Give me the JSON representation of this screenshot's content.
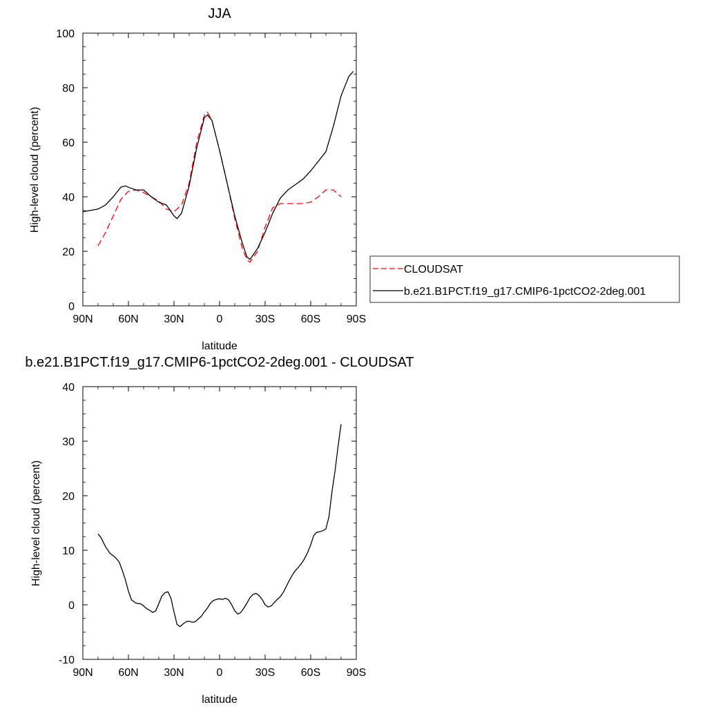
{
  "chart_data": [
    {
      "type": "line",
      "title": "JJA",
      "xlabel": "latitude",
      "ylabel": "High-level cloud (percent)",
      "xlim": [
        -90,
        90
      ],
      "ylim": [
        0,
        100
      ],
      "xticks": [
        {
          "value": -90,
          "label": "90N"
        },
        {
          "value": -60,
          "label": "60N"
        },
        {
          "value": -30,
          "label": "30N"
        },
        {
          "value": 0,
          "label": "0"
        },
        {
          "value": 30,
          "label": "30S"
        },
        {
          "value": 60,
          "label": "60S"
        },
        {
          "value": 90,
          "label": "90S"
        }
      ],
      "yticks": [
        0,
        20,
        40,
        60,
        80,
        100
      ],
      "legend_position": "right",
      "series": [
        {
          "name": "CLOUDSAT",
          "color": "#ff0000",
          "style": "dashed",
          "x": [
            -80,
            -75,
            -70,
            -65,
            -60,
            -55,
            -50,
            -45,
            -40,
            -35,
            -30,
            -25,
            -20,
            -15,
            -10,
            -8,
            -5,
            0,
            5,
            10,
            15,
            18,
            20,
            25,
            30,
            35,
            40,
            45,
            50,
            55,
            60,
            65,
            70,
            75,
            80
          ],
          "y": [
            22,
            27,
            33,
            39,
            42,
            42.5,
            41.5,
            40,
            38.5,
            35.5,
            34.5,
            37,
            45,
            60,
            70,
            71,
            68,
            57,
            45,
            32,
            21,
            17,
            16,
            20,
            29,
            36,
            37.5,
            37.5,
            37.5,
            37.5,
            38,
            40,
            42.5,
            42.5,
            40
          ]
        },
        {
          "name": "b.e21.B1PCT.f19_g17.CMIP6-1pctCO2-2deg.001",
          "color": "#000000",
          "style": "solid",
          "x": [
            -90,
            -85,
            -80,
            -75,
            -70,
            -65,
            -62,
            -60,
            -55,
            -50,
            -45,
            -40,
            -35,
            -30,
            -28,
            -25,
            -20,
            -15,
            -10,
            -8,
            -5,
            0,
            5,
            10,
            15,
            18,
            20,
            25,
            30,
            35,
            40,
            45,
            50,
            55,
            60,
            65,
            70,
            75,
            80,
            85,
            88
          ],
          "y": [
            34.5,
            35,
            35.5,
            37,
            40,
            43.5,
            44,
            43.5,
            42.5,
            42.5,
            40,
            38,
            37,
            33,
            32,
            34,
            44,
            58,
            69,
            70,
            68,
            57,
            45,
            33,
            23,
            18,
            17,
            21,
            27,
            34,
            39.5,
            42.5,
            44.5,
            46.5,
            49.5,
            53,
            56.5,
            66,
            77,
            84,
            86
          ]
        }
      ]
    },
    {
      "type": "line",
      "title": "b.e21.B1PCT.f19_g17.CMIP6-1pctCO2-2deg.001 - CLOUDSAT",
      "xlabel": "latitude",
      "ylabel": "High-level cloud (percent)",
      "xlim": [
        -90,
        90
      ],
      "ylim": [
        -10,
        40
      ],
      "xticks": [
        {
          "value": -90,
          "label": "90N"
        },
        {
          "value": -60,
          "label": "60N"
        },
        {
          "value": -30,
          "label": "30N"
        },
        {
          "value": 0,
          "label": "0"
        },
        {
          "value": 30,
          "label": "30S"
        },
        {
          "value": 60,
          "label": "60S"
        },
        {
          "value": 90,
          "label": "90S"
        }
      ],
      "yticks": [
        -10,
        0,
        10,
        20,
        30,
        40
      ],
      "series": [
        {
          "color": "#000000",
          "style": "solid",
          "x": [
            -80,
            -78,
            -75,
            -72,
            -70,
            -68,
            -66,
            -64,
            -62,
            -60,
            -58,
            -55,
            -52,
            -50,
            -48,
            -46,
            -44,
            -42,
            -40,
            -38,
            -36,
            -34,
            -32,
            -30,
            -28,
            -26,
            -24,
            -22,
            -20,
            -18,
            -16,
            -14,
            -12,
            -10,
            -8,
            -6,
            -4,
            -2,
            0,
            2,
            4,
            6,
            8,
            10,
            12,
            14,
            16,
            18,
            20,
            22,
            24,
            26,
            28,
            30,
            32,
            34,
            36,
            38,
            40,
            42,
            44,
            46,
            48,
            50,
            52,
            54,
            56,
            58,
            60,
            62,
            64,
            66,
            68,
            70,
            72,
            74,
            76,
            78,
            80
          ],
          "y": [
            13,
            12.3,
            10.6,
            9.4,
            9,
            8.5,
            7.8,
            6.3,
            4.6,
            2.5,
            0.9,
            0.3,
            0.2,
            -0.2,
            -0.7,
            -1.0,
            -1.4,
            -1.1,
            0.2,
            1.6,
            2.2,
            2.4,
            1.2,
            -1.3,
            -3.6,
            -4,
            -3.5,
            -3.1,
            -3.0,
            -3.2,
            -3.1,
            -2.6,
            -2.1,
            -1.3,
            -0.6,
            0.3,
            0.8,
            1.0,
            1.1,
            1.0,
            1.2,
            0.9,
            0,
            -1.1,
            -1.7,
            -1.4,
            -0.6,
            0.3,
            1.3,
            1.9,
            2.1,
            1.7,
            1.0,
            0,
            -0.4,
            -0.2,
            0.4,
            1.0,
            1.5,
            2.3,
            3.4,
            4.5,
            5.5,
            6.3,
            6.9,
            7.6,
            8.5,
            9.6,
            11,
            12.7,
            13.3,
            13.4,
            13.6,
            13.9,
            16.1,
            20.7,
            24.5,
            29,
            33.1
          ]
        }
      ]
    }
  ]
}
